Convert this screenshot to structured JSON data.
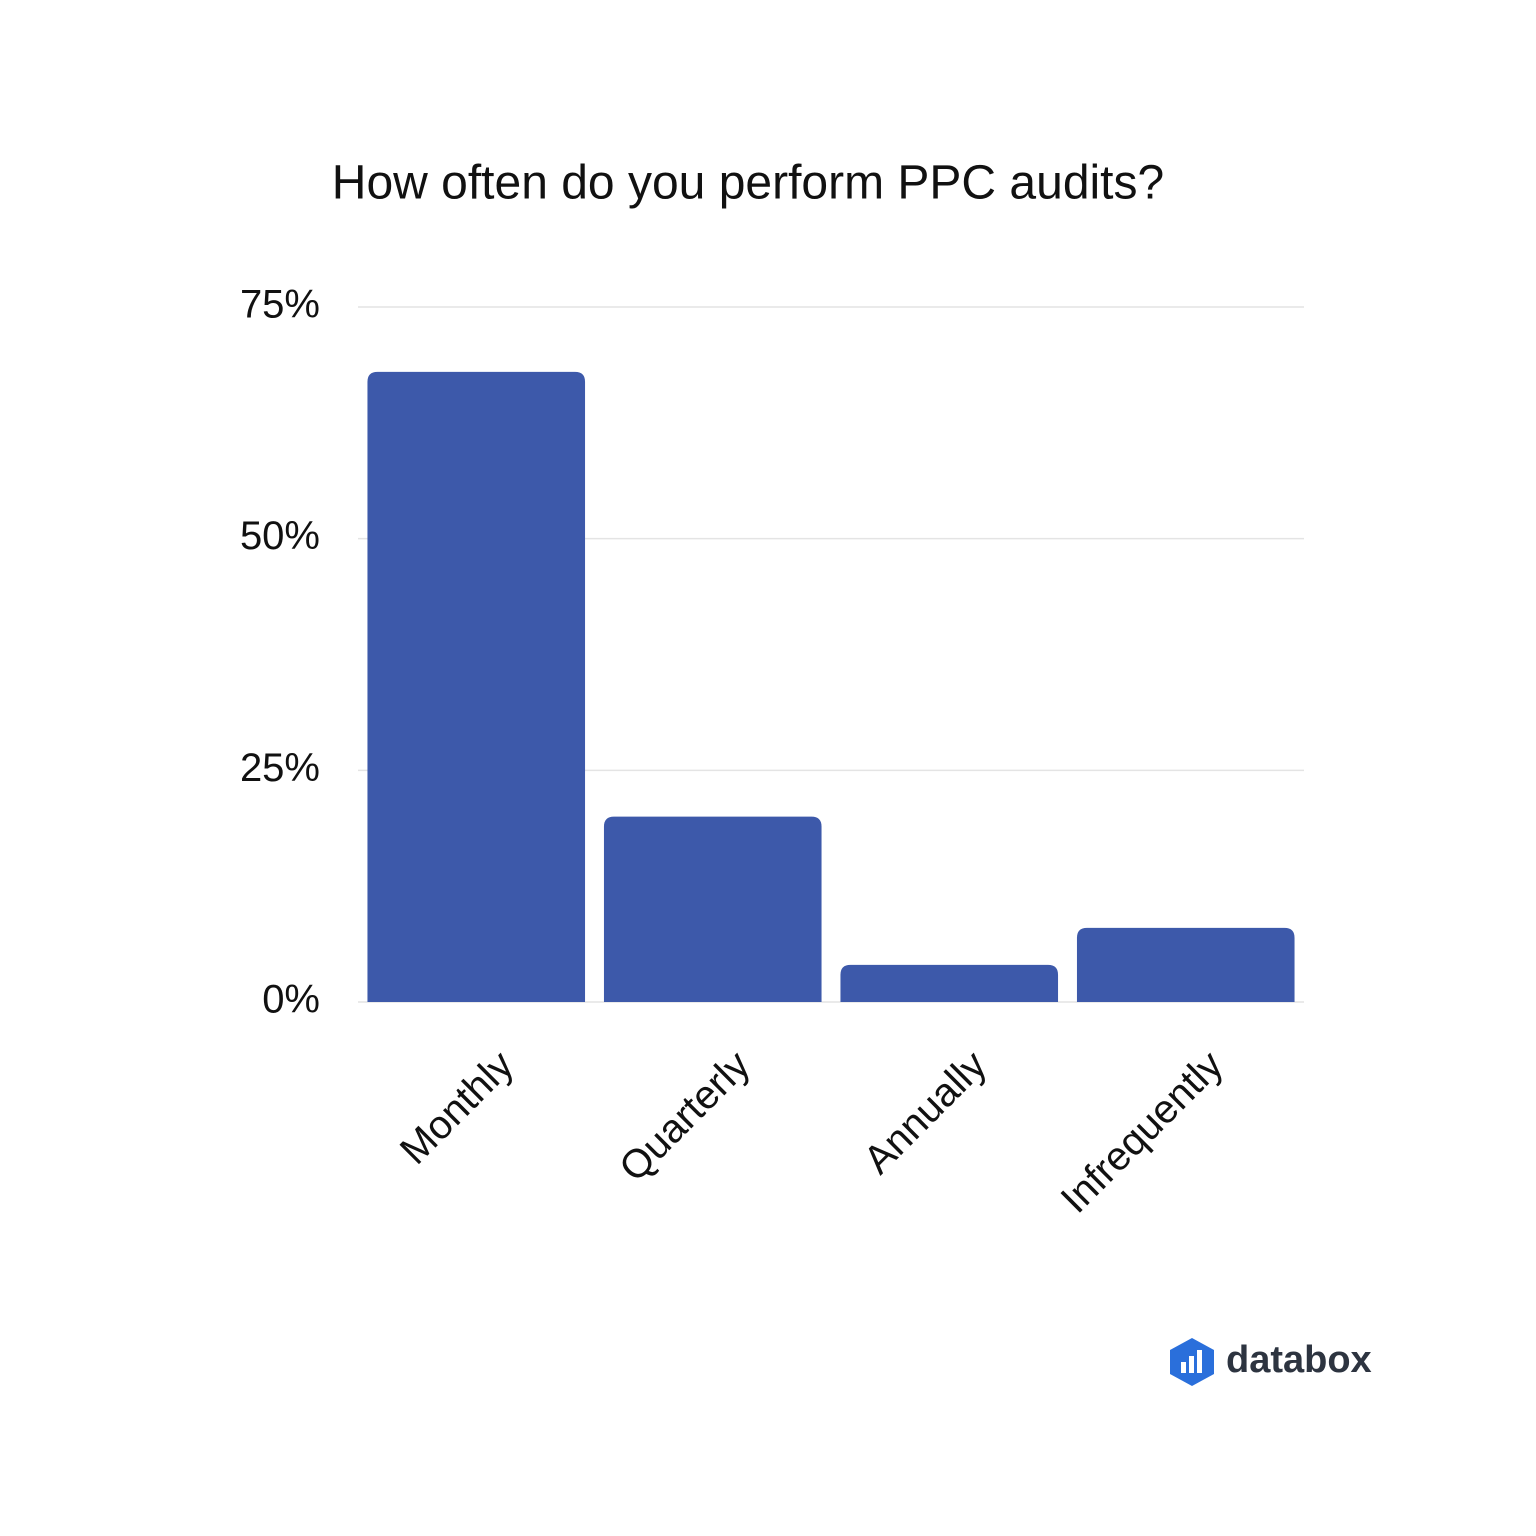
{
  "chart_data": {
    "type": "bar",
    "title": "How often do you perform PPC audits?",
    "categories": [
      "Monthly",
      "Quarterly",
      "Annually",
      "Infrequently"
    ],
    "values": [
      68,
      20,
      4,
      8
    ],
    "color": "#3d59aa",
    "ylim": [
      0,
      75
    ],
    "yticks": [
      {
        "value": 0,
        "label": "0%"
      },
      {
        "value": 25,
        "label": "25%"
      },
      {
        "value": 50,
        "label": "50%"
      },
      {
        "value": 75,
        "label": "75%"
      }
    ],
    "grid": true
  },
  "logo": "databox"
}
